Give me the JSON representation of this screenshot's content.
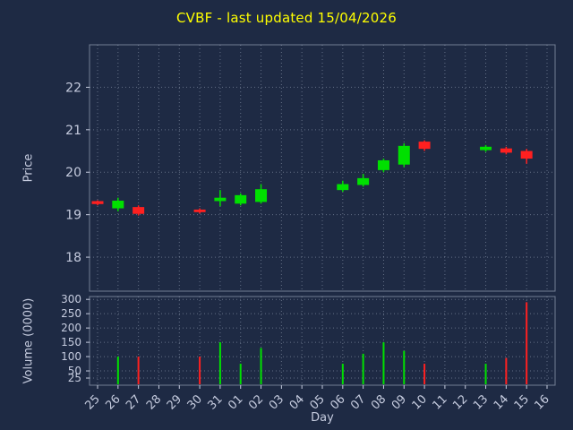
{
  "title": "CVBF - last updated 15/04/2026",
  "colors": {
    "background": "#1e2a44",
    "title": "#ffff00",
    "axis_text": "#c6ccdf",
    "grid": "#b9c3d7",
    "up": "#00e000",
    "down": "#ff2020"
  },
  "chart_data": {
    "type": "candlestick+volume",
    "title": "CVBF - last updated 15/04/2026",
    "xlabel": "Day",
    "price_ylabel": "Price",
    "volume_ylabel": "Volume (0000)",
    "grid": true,
    "categories": [
      "25",
      "26",
      "27",
      "28",
      "29",
      "30",
      "31",
      "01",
      "02",
      "03",
      "04",
      "05",
      "06",
      "07",
      "08",
      "09",
      "10",
      "11",
      "12",
      "13",
      "14",
      "15",
      "16"
    ],
    "price_ticks": [
      18,
      19,
      20,
      21,
      22
    ],
    "price_range": [
      17.2,
      23.0
    ],
    "volume_ticks": [
      25,
      50,
      100,
      150,
      200,
      250,
      300
    ],
    "volume_range": [
      0,
      310
    ],
    "candles": [
      {
        "day": "25",
        "open": 19.32,
        "close": 19.25,
        "high": 19.34,
        "low": 19.22
      },
      {
        "day": "26",
        "open": 19.15,
        "close": 19.33,
        "high": 19.4,
        "low": 19.08
      },
      {
        "day": "27",
        "open": 19.18,
        "close": 19.02,
        "high": 19.22,
        "low": 18.98
      },
      {
        "day": "30",
        "open": 19.12,
        "close": 19.06,
        "high": 19.15,
        "low": 19.03
      },
      {
        "day": "31",
        "open": 19.32,
        "close": 19.4,
        "high": 19.58,
        "low": 19.2
      },
      {
        "day": "01",
        "open": 19.26,
        "close": 19.46,
        "high": 19.5,
        "low": 19.22
      },
      {
        "day": "02",
        "open": 19.3,
        "close": 19.6,
        "high": 19.72,
        "low": 19.26
      },
      {
        "day": "06",
        "open": 19.58,
        "close": 19.72,
        "high": 19.8,
        "low": 19.54
      },
      {
        "day": "07",
        "open": 19.7,
        "close": 19.86,
        "high": 19.96,
        "low": 19.66
      },
      {
        "day": "08",
        "open": 20.05,
        "close": 20.28,
        "high": 20.32,
        "low": 20.0
      },
      {
        "day": "09",
        "open": 20.18,
        "close": 20.62,
        "high": 20.68,
        "low": 20.12
      },
      {
        "day": "10",
        "open": 20.72,
        "close": 20.55,
        "high": 20.75,
        "low": 20.5
      },
      {
        "day": "13",
        "open": 20.52,
        "close": 20.6,
        "high": 20.64,
        "low": 20.48
      },
      {
        "day": "14",
        "open": 20.56,
        "close": 20.46,
        "high": 20.6,
        "low": 20.42
      },
      {
        "day": "15",
        "open": 20.5,
        "close": 20.32,
        "high": 20.55,
        "low": 20.2
      }
    ],
    "volumes": [
      {
        "day": "26",
        "value": 100,
        "dir": "up"
      },
      {
        "day": "27",
        "value": 100,
        "dir": "down"
      },
      {
        "day": "30",
        "value": 100,
        "dir": "down"
      },
      {
        "day": "31",
        "value": 150,
        "dir": "up"
      },
      {
        "day": "01",
        "value": 75,
        "dir": "up"
      },
      {
        "day": "02",
        "value": 130,
        "dir": "up"
      },
      {
        "day": "06",
        "value": 75,
        "dir": "up"
      },
      {
        "day": "07",
        "value": 110,
        "dir": "up"
      },
      {
        "day": "08",
        "value": 150,
        "dir": "up"
      },
      {
        "day": "09",
        "value": 120,
        "dir": "up"
      },
      {
        "day": "10",
        "value": 75,
        "dir": "down"
      },
      {
        "day": "13",
        "value": 75,
        "dir": "up"
      },
      {
        "day": "14",
        "value": 95,
        "dir": "down"
      },
      {
        "day": "15",
        "value": 290,
        "dir": "down"
      }
    ]
  }
}
